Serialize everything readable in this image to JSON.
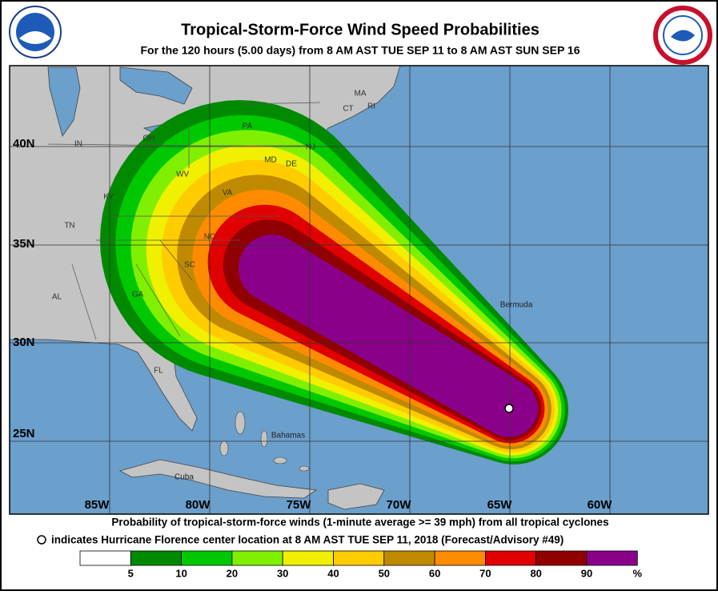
{
  "header": {
    "title": "Tropical-Storm-Force Wind Speed Probabilities",
    "subtitle": "For the 120 hours (5.00 days) from 8 AM AST TUE SEP 11 to 8 AM AST SUN SEP 16"
  },
  "map": {
    "latitude_labels": [
      "40N",
      "35N",
      "30N",
      "25N"
    ],
    "longitude_labels": [
      "85W",
      "80W",
      "75W",
      "70W",
      "65W",
      "60W"
    ],
    "state_labels": [
      "IN",
      "OH",
      "PA",
      "MA",
      "CT",
      "RI",
      "NJ",
      "DE",
      "MD",
      "WV",
      "KY",
      "VA",
      "TN",
      "NC",
      "SC",
      "GA",
      "AL",
      "FL"
    ],
    "place_labels": [
      "Bermuda",
      "Bahamas",
      "Cuba"
    ]
  },
  "footer": {
    "caption": "Probability of tropical-storm-force winds (1-minute average >= 39 mph) from all tropical cyclones",
    "center_note": "indicates Hurricane Florence center location at 8 AM AST TUE SEP 11, 2018 (Forecast/Advisory #49)"
  },
  "legend": {
    "labels": [
      "5",
      "10",
      "20",
      "30",
      "40",
      "50",
      "60",
      "70",
      "80",
      "90",
      "%"
    ]
  }
}
